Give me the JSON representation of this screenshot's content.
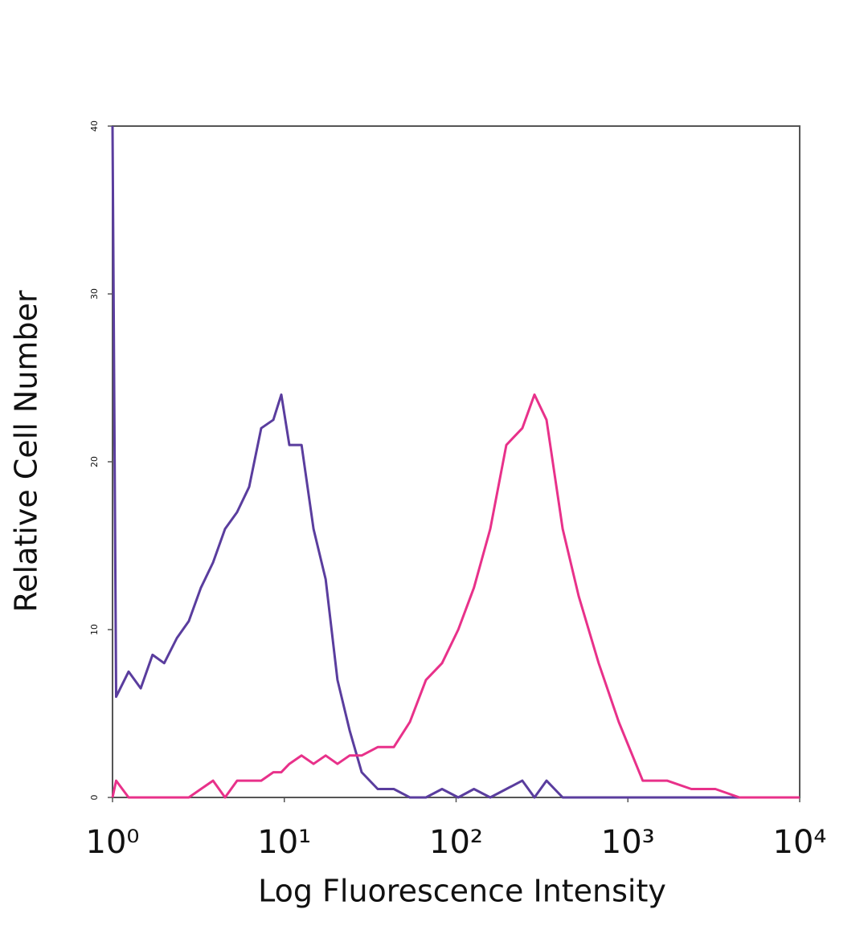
{
  "chart_data": {
    "type": "line",
    "x_label": "Log Fluorescence Intensity",
    "y_label": "Relative Cell Number",
    "x_log": true,
    "x": [
      1,
      1.05,
      1.24,
      1.46,
      1.71,
      2.0,
      2.37,
      2.78,
      3.27,
      3.85,
      4.52,
      5.31,
      6.24,
      7.34,
      8.63,
      9.6,
      10.7,
      12.6,
      14.8,
      17.4,
      20.4,
      24.0,
      28.2,
      35.0,
      43.4,
      53.8,
      66.8,
      82.8,
      103,
      127,
      158,
      196,
      243,
      286,
      336,
      417,
      517,
      676,
      885,
      1220,
      1690,
      2340,
      3230,
      4460,
      6860,
      10000
    ],
    "series": [
      {
        "color": "#5a3d9e",
        "values": [
          40,
          6,
          7.5,
          6.5,
          8.5,
          8,
          9.5,
          10.5,
          12.5,
          14,
          16,
          17,
          18.5,
          22,
          22.5,
          24,
          21,
          21,
          16,
          13,
          7,
          4,
          1.5,
          0.5,
          0.5,
          0,
          0,
          0.5,
          0,
          0.5,
          0,
          0.5,
          1,
          0,
          1,
          0,
          0,
          0,
          0,
          0,
          0,
          0,
          0,
          0,
          0,
          0
        ]
      },
      {
        "color": "#e8318a",
        "values": [
          0,
          1,
          0,
          0,
          0,
          0,
          0,
          0,
          0.5,
          1,
          0,
          1,
          1,
          1,
          1.5,
          1.5,
          2,
          2.5,
          2,
          2.5,
          2,
          2.5,
          2.5,
          3,
          3,
          4.5,
          7,
          8,
          10,
          12.5,
          16,
          21,
          22,
          24,
          22.5,
          16,
          12,
          8,
          4.5,
          1,
          1,
          0.5,
          0.5,
          0,
          0,
          0
        ]
      }
    ],
    "xlim": [
      1,
      10000
    ],
    "xticks": [
      {
        "value": 1,
        "label": "10⁰"
      },
      {
        "value": 10,
        "label": "10¹"
      },
      {
        "value": 100,
        "label": "10²"
      },
      {
        "value": 1000,
        "label": "10³"
      },
      {
        "value": 10000,
        "label": "10⁴"
      }
    ],
    "ylim": [
      0,
      40
    ],
    "yticks": [
      0,
      10,
      20,
      30,
      40
    ]
  }
}
